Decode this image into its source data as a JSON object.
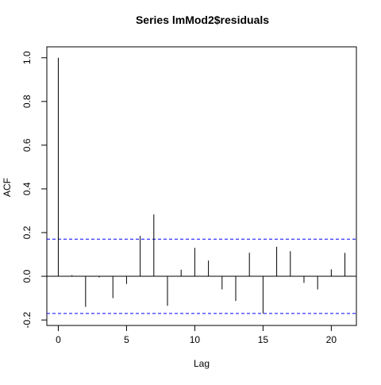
{
  "chart_data": {
    "type": "bar",
    "title": "Series  lmMod2$residuals",
    "xlabel": "Lag",
    "ylabel": "ACF",
    "xlim": [
      -0.84,
      21.84
    ],
    "ylim": [
      -0.225,
      1.05
    ],
    "x_ticks": [
      0,
      5,
      10,
      15,
      20
    ],
    "x_tick_labels": [
      "0",
      "5",
      "10",
      "15",
      "20"
    ],
    "y_ticks": [
      -0.2,
      0.0,
      0.2,
      0.4,
      0.6,
      0.8,
      1.0
    ],
    "y_tick_labels": [
      "-0.2",
      "0.0",
      "0.2",
      "0.4",
      "0.6",
      "0.8",
      "1.0"
    ],
    "grid": false,
    "lags": [
      0,
      1,
      2,
      3,
      4,
      5,
      6,
      7,
      8,
      9,
      10,
      11,
      12,
      13,
      14,
      15,
      16,
      17,
      18,
      19,
      20,
      21
    ],
    "acf": [
      1.0,
      0.005,
      -0.14,
      -0.005,
      -0.1,
      -0.035,
      0.185,
      0.283,
      -0.135,
      0.03,
      0.13,
      0.072,
      -0.06,
      -0.113,
      0.108,
      -0.17,
      0.135,
      0.115,
      -0.03,
      -0.06,
      0.032,
      0.107
    ],
    "confidence_bounds": [
      0.17,
      -0.17
    ],
    "zero_line": 0,
    "colors": {
      "spikes": "#000000",
      "confidence_line": "#0000ff",
      "axes": "#000000"
    }
  }
}
